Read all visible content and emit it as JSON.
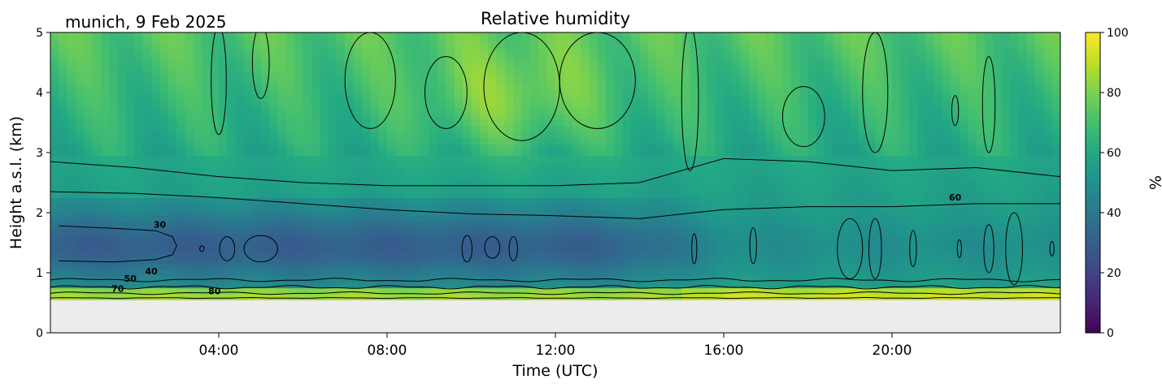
{
  "chart_data": {
    "type": "heatmap",
    "station_label": "munich, 9 Feb 2025",
    "title": "Relative humidity",
    "xlabel": "Time (UTC)",
    "ylabel": "Height a.s.l. (km)",
    "x_range_hours": [
      0,
      24
    ],
    "xticks": [
      {
        "hour": 4,
        "label": "04:00"
      },
      {
        "hour": 8,
        "label": "08:00"
      },
      {
        "hour": 12,
        "label": "12:00"
      },
      {
        "hour": 16,
        "label": "16:00"
      },
      {
        "hour": 20,
        "label": "20:00"
      }
    ],
    "ylim_km": [
      0,
      5
    ],
    "yticks": [
      0,
      1,
      2,
      3,
      4,
      5
    ],
    "data_floor_km": 0.55,
    "colorbar": {
      "label": "%",
      "colormap": "viridis",
      "range": [
        0,
        100
      ],
      "ticks": [
        0,
        20,
        40,
        60,
        80,
        100
      ]
    },
    "contour_levels": [
      30,
      40,
      50,
      60,
      70,
      80
    ],
    "contour_labels": [
      {
        "text": "30",
        "hour": 2.6,
        "km": 1.75
      },
      {
        "text": "40",
        "hour": 2.4,
        "km": 0.97
      },
      {
        "text": "50",
        "hour": 1.9,
        "km": 0.85
      },
      {
        "text": "70",
        "hour": 1.6,
        "km": 0.68
      },
      {
        "text": "80",
        "hour": 3.9,
        "km": 0.64
      },
      {
        "text": "60",
        "hour": 21.5,
        "km": 2.2
      }
    ],
    "field_summary": [
      {
        "layer": "0.55-0.75 km",
        "relative_humidity_pct": [
          75,
          88
        ]
      },
      {
        "layer": "0.8-2.2 km (00-14 UTC)",
        "relative_humidity_pct": [
          28,
          40
        ]
      },
      {
        "layer": "0.9-2.2 km (18-24 UTC)",
        "relative_humidity_pct": [
          45,
          55
        ]
      },
      {
        "layer": "2.3-3.2 km",
        "relative_humidity_pct": [
          55,
          65
        ]
      },
      {
        "layer": "3.2-5 km",
        "relative_humidity_pct": [
          60,
          85
        ]
      }
    ],
    "grid": false
  }
}
